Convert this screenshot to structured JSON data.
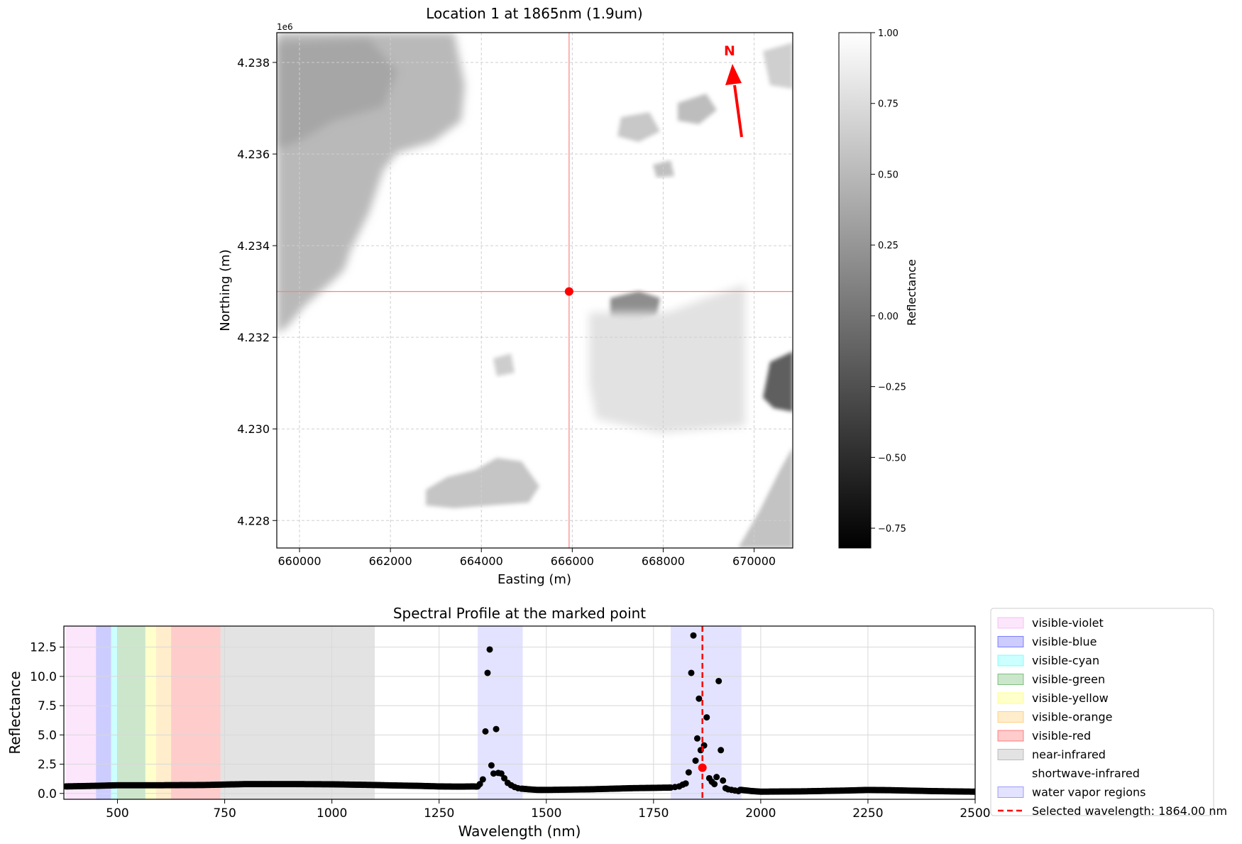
{
  "chart_data": [
    {
      "type": "heatmap",
      "title": "Location 1 at 1865nm (1.9um)",
      "xlabel": "Easting (m)",
      "ylabel": "Northing (m)",
      "xlim": [
        659500,
        670850
      ],
      "ylim": [
        4227400,
        4238650
      ],
      "x_ticks": [
        660000,
        662000,
        664000,
        666000,
        668000,
        670000
      ],
      "x_tick_labels": [
        "660000",
        "662000",
        "664000",
        "666000",
        "668000",
        "670000"
      ],
      "y_ticks": [
        4228000,
        4230000,
        4232000,
        4234000,
        4236000,
        4238000
      ],
      "y_tick_labels": [
        "4.228",
        "4.230",
        "4.232",
        "4.234",
        "4.236",
        "4.238"
      ],
      "y_offset_label": "1e6",
      "grid": true,
      "marked_point": {
        "x": 665930,
        "y": 4233000
      },
      "crosshair_color": "#ff8080",
      "marker_color": "#ff0000",
      "north_arrow_label": "N",
      "north_arrow_color": "#ff0000",
      "colorbar": {
        "label": "Reflectance",
        "range": [
          -0.82,
          1.0
        ],
        "ticks": [
          1.0,
          0.75,
          0.5,
          0.25,
          0.0,
          -0.25,
          -0.5,
          -0.75
        ],
        "tick_labels": [
          "1.00",
          "0.75",
          "0.50",
          "0.25",
          "0.00",
          "−0.25",
          "−0.50",
          "−0.75"
        ],
        "colormap": "gray"
      }
    },
    {
      "type": "scatter",
      "title": "Spectral Profile at the marked point",
      "xlabel": "Wavelength (nm)",
      "ylabel": "Reflectance",
      "xlim": [
        375,
        2500
      ],
      "ylim": [
        -0.5,
        14.3
      ],
      "x_ticks": [
        500,
        750,
        1000,
        1250,
        1500,
        1750,
        2000,
        2250,
        2500
      ],
      "x_tick_labels": [
        "500",
        "750",
        "1000",
        "1250",
        "1500",
        "1750",
        "2000",
        "2250",
        "2500"
      ],
      "y_ticks": [
        0,
        2.5,
        5,
        7.5,
        10,
        12.5
      ],
      "y_tick_labels": [
        "0.0",
        "2.5",
        "5.0",
        "7.5",
        "10.0",
        "12.5"
      ],
      "grid": true,
      "legend_position": "outside-right",
      "bands": [
        {
          "name": "visible-violet",
          "range": [
            380,
            450
          ],
          "color": "#ee82ee",
          "alpha": 0.2
        },
        {
          "name": "visible-blue",
          "range": [
            450,
            485
          ],
          "color": "#0000ff",
          "alpha": 0.2
        },
        {
          "name": "visible-cyan",
          "range": [
            485,
            500
          ],
          "color": "#00ffff",
          "alpha": 0.2
        },
        {
          "name": "visible-green",
          "range": [
            500,
            565
          ],
          "color": "#008000",
          "alpha": 0.2
        },
        {
          "name": "visible-yellow",
          "range": [
            565,
            590
          ],
          "color": "#ffff00",
          "alpha": 0.2
        },
        {
          "name": "visible-orange",
          "range": [
            590,
            625
          ],
          "color": "#ffa500",
          "alpha": 0.2
        },
        {
          "name": "visible-red",
          "range": [
            625,
            740
          ],
          "color": "#ff0000",
          "alpha": 0.2
        },
        {
          "name": "near-infrared",
          "range": [
            740,
            1100
          ],
          "color": "#808080",
          "alpha": 0.22
        },
        {
          "name": "shortwave-infrared",
          "range": [
            1100,
            2500
          ],
          "color": "#ffffff",
          "alpha": 0.0
        },
        {
          "name": "water vapor regions",
          "range": [
            1340,
            1445
          ],
          "color": "#0000ff",
          "alpha": 0.11
        },
        {
          "name": "water vapor regions",
          "range": [
            1790,
            1955
          ],
          "color": "#0000ff",
          "alpha": 0.11
        }
      ],
      "selected_wavelength": {
        "value": 1864,
        "label": "Selected wavelength: 1864.00 nm",
        "color": "#ff0000"
      },
      "selected_point": {
        "x": 1864,
        "y": 2.2,
        "color": "#ff0000"
      },
      "baseline": {
        "x": [
          380,
          450,
          500,
          600,
          700,
          740,
          800,
          900,
          1000,
          1100,
          1150,
          1200,
          1250,
          1300,
          1330,
          1445,
          1460,
          1480,
          1500,
          1600,
          1700,
          1790,
          1955,
          1980,
          2000,
          2100,
          2200,
          2250,
          2300,
          2400,
          2500
        ],
        "y": [
          0.6,
          0.65,
          0.7,
          0.7,
          0.72,
          0.75,
          0.8,
          0.8,
          0.78,
          0.72,
          0.68,
          0.65,
          0.6,
          0.58,
          0.6,
          0.4,
          0.35,
          0.3,
          0.3,
          0.35,
          0.45,
          0.5,
          0.3,
          0.2,
          0.15,
          0.18,
          0.25,
          0.3,
          0.28,
          0.2,
          0.15
        ]
      },
      "points": [
        {
          "x": 1340,
          "y": 0.6
        },
        {
          "x": 1345,
          "y": 0.8
        },
        {
          "x": 1352,
          "y": 1.2
        },
        {
          "x": 1358,
          "y": 5.3
        },
        {
          "x": 1363,
          "y": 10.3
        },
        {
          "x": 1368,
          "y": 12.3
        },
        {
          "x": 1372,
          "y": 2.4
        },
        {
          "x": 1377,
          "y": 1.7
        },
        {
          "x": 1383,
          "y": 5.5
        },
        {
          "x": 1388,
          "y": 1.75
        },
        {
          "x": 1395,
          "y": 1.7
        },
        {
          "x": 1402,
          "y": 1.3
        },
        {
          "x": 1410,
          "y": 0.9
        },
        {
          "x": 1418,
          "y": 0.7
        },
        {
          "x": 1426,
          "y": 0.55
        },
        {
          "x": 1434,
          "y": 0.45
        },
        {
          "x": 1790,
          "y": 0.5
        },
        {
          "x": 1800,
          "y": 0.55
        },
        {
          "x": 1810,
          "y": 0.6
        },
        {
          "x": 1818,
          "y": 0.75
        },
        {
          "x": 1825,
          "y": 0.85
        },
        {
          "x": 1832,
          "y": 1.8
        },
        {
          "x": 1838,
          "y": 10.3
        },
        {
          "x": 1843,
          "y": 13.5
        },
        {
          "x": 1848,
          "y": 2.8
        },
        {
          "x": 1852,
          "y": 4.7
        },
        {
          "x": 1856,
          "y": 8.1
        },
        {
          "x": 1860,
          "y": 3.7
        },
        {
          "x": 1868,
          "y": 4.1
        },
        {
          "x": 1874,
          "y": 6.5
        },
        {
          "x": 1880,
          "y": 1.3
        },
        {
          "x": 1886,
          "y": 1.0
        },
        {
          "x": 1892,
          "y": 0.8
        },
        {
          "x": 1897,
          "y": 1.4
        },
        {
          "x": 1902,
          "y": 9.6
        },
        {
          "x": 1907,
          "y": 3.7
        },
        {
          "x": 1912,
          "y": 1.1
        },
        {
          "x": 1918,
          "y": 0.45
        },
        {
          "x": 1924,
          "y": 0.35
        },
        {
          "x": 1932,
          "y": 0.3
        },
        {
          "x": 1940,
          "y": 0.25
        },
        {
          "x": 1948,
          "y": 0.2
        }
      ]
    }
  ]
}
